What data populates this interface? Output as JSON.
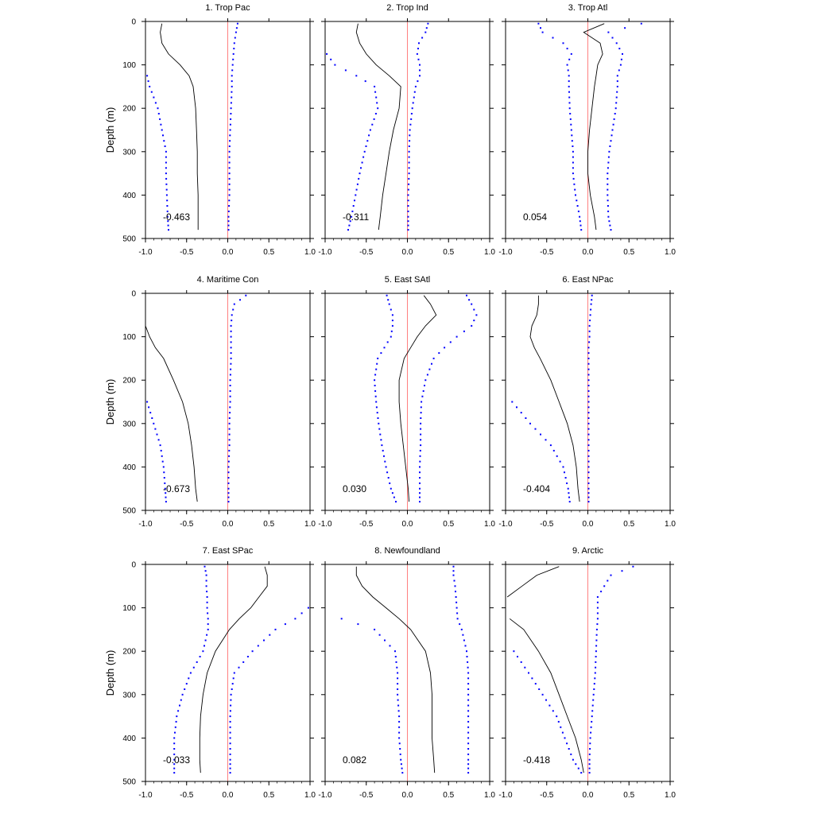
{
  "figure": {
    "ylabel": "Depth (m)",
    "xlim": [
      -1.0,
      1.0
    ],
    "ylim": [
      500,
      0
    ],
    "x_ticks": [
      "-1.0",
      "-0.5",
      "0.0",
      "0.5",
      "1.0"
    ],
    "y_ticks": [
      "0",
      "100",
      "200",
      "300",
      "400",
      "500"
    ],
    "colors": {
      "line": "#000000",
      "dots": "#0000ff",
      "zero_line": "#ff8080",
      "frame": "#000000"
    }
  },
  "chart_data": [
    {
      "type": "line",
      "title": "1. Trop Pac",
      "annotation": "-0.463",
      "depth": [
        5,
        25,
        50,
        75,
        100,
        125,
        150,
        200,
        250,
        300,
        350,
        400,
        450,
        480
      ],
      "series": [
        {
          "values": [
            -0.8,
            -0.82,
            -0.8,
            -0.72,
            -0.58,
            -0.47,
            -0.42,
            -0.39,
            -0.38,
            -0.37,
            -0.37,
            -0.36,
            -0.36,
            -0.36
          ]
        },
        {
          "values": [
            0.12,
            0.1,
            0.08,
            0.07,
            0.06,
            0.05,
            0.05,
            0.04,
            0.03,
            0.02,
            0.02,
            0.02,
            0.01,
            0.01
          ]
        },
        {
          "values": [
            null,
            null,
            null,
            null,
            null,
            -0.98,
            -0.95,
            -0.85,
            -0.8,
            -0.75,
            -0.75,
            -0.74,
            -0.73,
            -0.72
          ]
        }
      ]
    },
    {
      "type": "line",
      "title": "2. Trop Ind",
      "annotation": "-0.311",
      "depth": [
        5,
        25,
        50,
        75,
        100,
        125,
        150,
        200,
        250,
        300,
        350,
        400,
        450,
        480
      ],
      "series": [
        {
          "values": [
            -0.6,
            -0.62,
            -0.58,
            -0.5,
            -0.38,
            -0.22,
            -0.08,
            -0.1,
            -0.17,
            -0.22,
            -0.26,
            -0.3,
            -0.33,
            -0.35
          ]
        },
        {
          "values": [
            0.25,
            0.22,
            0.14,
            0.12,
            0.15,
            0.15,
            0.1,
            0.06,
            0.03,
            0.02,
            0.02,
            0.01,
            0.01,
            0.01
          ]
        },
        {
          "values": [
            null,
            null,
            null,
            -0.98,
            -0.88,
            -0.62,
            -0.4,
            -0.36,
            -0.45,
            -0.52,
            -0.58,
            -0.63,
            -0.68,
            -0.72
          ]
        }
      ]
    },
    {
      "type": "line",
      "title": "3. Trop Atl",
      "annotation": "0.054",
      "depth": [
        5,
        25,
        50,
        75,
        100,
        125,
        150,
        200,
        250,
        300,
        350,
        400,
        450,
        480
      ],
      "series": [
        {
          "values": [
            0.2,
            -0.05,
            0.15,
            0.18,
            0.12,
            0.1,
            0.08,
            0.05,
            0.02,
            0.0,
            0.0,
            0.03,
            0.08,
            0.1
          ]
        },
        {
          "values": [
            0.65,
            0.25,
            0.35,
            0.42,
            0.4,
            0.36,
            0.36,
            0.34,
            0.3,
            0.26,
            0.24,
            0.24,
            0.25,
            0.28
          ]
        },
        {
          "values": [
            -0.6,
            -0.55,
            -0.3,
            -0.2,
            -0.25,
            -0.23,
            -0.23,
            -0.22,
            -0.2,
            -0.18,
            -0.18,
            -0.15,
            -0.1,
            -0.08
          ]
        }
      ]
    },
    {
      "type": "line",
      "title": "4. Maritime Con",
      "annotation": "-0.673",
      "depth": [
        5,
        25,
        50,
        75,
        100,
        125,
        150,
        200,
        250,
        300,
        350,
        400,
        450,
        480
      ],
      "series": [
        {
          "values": [
            null,
            null,
            null,
            -1.0,
            -0.95,
            -0.88,
            -0.78,
            -0.66,
            -0.55,
            -0.48,
            -0.44,
            -0.41,
            -0.39,
            -0.37
          ]
        },
        {
          "values": [
            0.22,
            0.08,
            0.05,
            0.04,
            0.04,
            0.04,
            0.04,
            0.03,
            0.03,
            0.02,
            0.02,
            0.01,
            0.01,
            0.01
          ]
        },
        {
          "values": [
            null,
            null,
            null,
            null,
            null,
            null,
            null,
            null,
            -0.98,
            -0.9,
            -0.82,
            -0.78,
            -0.76,
            -0.75
          ]
        }
      ]
    },
    {
      "type": "line",
      "title": "5. East SAtl",
      "annotation": "0.030",
      "depth": [
        5,
        25,
        50,
        75,
        100,
        125,
        150,
        200,
        250,
        300,
        350,
        400,
        450,
        480
      ],
      "series": [
        {
          "values": [
            0.2,
            0.28,
            0.35,
            0.22,
            0.12,
            0.04,
            -0.04,
            -0.1,
            -0.1,
            -0.08,
            -0.05,
            -0.02,
            0.01,
            0.02
          ]
        },
        {
          "values": [
            0.72,
            0.78,
            0.84,
            0.78,
            0.6,
            0.45,
            0.32,
            0.22,
            0.17,
            0.16,
            0.16,
            0.15,
            0.15,
            0.15
          ]
        },
        {
          "values": [
            -0.25,
            -0.22,
            -0.18,
            -0.18,
            -0.2,
            -0.28,
            -0.36,
            -0.4,
            -0.38,
            -0.35,
            -0.31,
            -0.26,
            -0.2,
            -0.14
          ]
        }
      ]
    },
    {
      "type": "line",
      "title": "6. East NPac",
      "annotation": "-0.404",
      "depth": [
        5,
        25,
        50,
        75,
        100,
        125,
        150,
        200,
        250,
        300,
        350,
        400,
        450,
        480
      ],
      "series": [
        {
          "values": [
            -0.6,
            -0.6,
            -0.62,
            -0.68,
            -0.7,
            -0.65,
            -0.58,
            -0.45,
            -0.35,
            -0.25,
            -0.18,
            -0.14,
            -0.12,
            -0.1
          ]
        },
        {
          "values": [
            0.05,
            0.04,
            0.03,
            0.02,
            0.02,
            0.01,
            0.01,
            0.01,
            0.01,
            0.01,
            0.01,
            0.01,
            0.01,
            0.01
          ]
        },
        {
          "values": [
            null,
            null,
            null,
            null,
            null,
            null,
            null,
            null,
            -0.92,
            -0.7,
            -0.45,
            -0.3,
            -0.24,
            -0.22
          ]
        }
      ]
    },
    {
      "type": "line",
      "title": "7. East SPac",
      "annotation": "-0.033",
      "depth": [
        5,
        25,
        50,
        75,
        100,
        125,
        150,
        200,
        250,
        300,
        350,
        400,
        450,
        480
      ],
      "series": [
        {
          "values": [
            0.45,
            0.48,
            0.48,
            0.38,
            0.28,
            0.14,
            0.02,
            -0.15,
            -0.25,
            -0.3,
            -0.33,
            -0.34,
            -0.34,
            -0.33
          ]
        },
        {
          "values": [
            -0.28,
            -0.26,
            -0.26,
            -0.25,
            -0.25,
            -0.24,
            -0.24,
            -0.3,
            -0.45,
            -0.55,
            -0.62,
            -0.65,
            -0.65,
            -0.65
          ]
        },
        {
          "values": [
            null,
            null,
            null,
            null,
            0.98,
            0.82,
            0.58,
            0.3,
            0.08,
            0.04,
            0.03,
            0.03,
            0.03,
            0.03
          ]
        }
      ]
    },
    {
      "type": "line",
      "title": "8. Newfoundland",
      "annotation": "0.082",
      "depth": [
        5,
        25,
        50,
        75,
        100,
        125,
        150,
        200,
        250,
        300,
        350,
        400,
        450,
        480
      ],
      "series": [
        {
          "values": [
            -0.62,
            -0.62,
            -0.55,
            -0.42,
            -0.26,
            -0.1,
            0.04,
            0.22,
            0.28,
            0.3,
            0.3,
            0.3,
            0.32,
            0.33
          ]
        },
        {
          "values": [
            0.56,
            0.56,
            0.58,
            0.59,
            0.6,
            0.61,
            0.66,
            0.72,
            0.74,
            0.74,
            0.74,
            0.74,
            0.74,
            0.74
          ]
        },
        {
          "values": [
            null,
            null,
            null,
            null,
            null,
            -0.8,
            -0.4,
            -0.15,
            -0.12,
            -0.12,
            -0.1,
            -0.1,
            -0.08,
            -0.06
          ]
        }
      ]
    },
    {
      "type": "line",
      "title": "9. Arctic",
      "annotation": "-0.418",
      "depth": [
        5,
        25,
        50,
        75,
        100,
        125,
        150,
        200,
        250,
        300,
        350,
        400,
        450,
        480
      ],
      "series": [
        {
          "values": [
            -0.35,
            -0.62,
            -0.8,
            -0.98,
            null,
            -0.95,
            -0.78,
            -0.6,
            -0.45,
            -0.35,
            -0.25,
            -0.15,
            -0.08,
            -0.05
          ]
        },
        {
          "values": [
            0.55,
            0.28,
            0.2,
            0.12,
            0.12,
            0.12,
            0.11,
            0.1,
            0.09,
            0.07,
            0.05,
            0.03,
            0.02,
            0.02
          ]
        },
        {
          "values": [
            null,
            null,
            null,
            null,
            null,
            null,
            null,
            -0.9,
            -0.72,
            -0.55,
            -0.38,
            -0.28,
            -0.18,
            -0.08
          ]
        }
      ]
    }
  ]
}
